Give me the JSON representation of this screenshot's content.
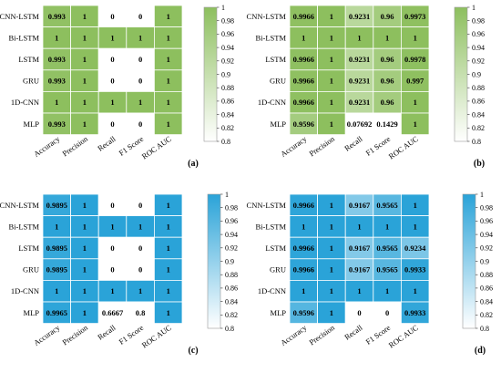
{
  "chart_data": [
    {
      "type": "heatmap",
      "panel_label": "(a)",
      "rows": [
        "CNN-LSTM",
        "Bi-LSTM",
        "LSTM",
        "GRU",
        "1D-CNN",
        "MLP"
      ],
      "columns": [
        "Accuracy",
        "Precision",
        "Recall",
        "F1 Score",
        "ROC AUC"
      ],
      "values": [
        [
          0.993,
          1,
          0,
          0,
          1
        ],
        [
          1,
          1,
          1,
          1,
          1
        ],
        [
          0.993,
          1,
          0,
          0,
          1
        ],
        [
          0.993,
          1,
          0,
          0,
          1
        ],
        [
          1,
          1,
          1,
          1,
          1
        ],
        [
          0.993,
          1,
          0,
          0,
          1
        ]
      ],
      "labels": [
        [
          "0.993",
          "1",
          "0",
          "0",
          "1"
        ],
        [
          "1",
          "1",
          "1",
          "1",
          "1"
        ],
        [
          "0.993",
          "1",
          "0",
          "0",
          "1"
        ],
        [
          "0.993",
          "1",
          "0",
          "0",
          "1"
        ],
        [
          "1",
          "1",
          "1",
          "1",
          "1"
        ],
        [
          "0.993",
          "1",
          "0",
          "0",
          "1"
        ]
      ],
      "colorbar": {
        "min": 0.8,
        "max": 1,
        "ticks": [
          "1",
          "0.98",
          "0.96",
          "0.94",
          "0.92",
          "0.9",
          "0.88",
          "0.86",
          "0.84",
          "0.82",
          "0.8"
        ]
      },
      "colors": {
        "high": "#8dbf5e",
        "low": "#ffffff"
      }
    },
    {
      "type": "heatmap",
      "panel_label": "(b)",
      "rows": [
        "CNN-LSTM",
        "Bi-LSTM",
        "LSTM",
        "GRU",
        "1D-CNN",
        "MLP"
      ],
      "columns": [
        "Accuracy",
        "Precision",
        "Recall",
        "F1 Score",
        "ROC AUC"
      ],
      "values": [
        [
          0.9966,
          1,
          0.9231,
          0.96,
          0.9973
        ],
        [
          1,
          1,
          1,
          1,
          1
        ],
        [
          0.9966,
          1,
          0.9231,
          0.96,
          0.9978
        ],
        [
          0.9966,
          1,
          0.9231,
          0.96,
          0.997
        ],
        [
          0.9966,
          1,
          0.9231,
          0.96,
          1
        ],
        [
          0.9596,
          1,
          0.07692,
          0.1429,
          1
        ]
      ],
      "labels": [
        [
          "0.9966",
          "1",
          "0.9231",
          "0.96",
          "0.9973"
        ],
        [
          "1",
          "1",
          "1",
          "1",
          "1"
        ],
        [
          "0.9966",
          "1",
          "0.9231",
          "0.96",
          "0.9978"
        ],
        [
          "0.9966",
          "1",
          "0.9231",
          "0.96",
          "0.997"
        ],
        [
          "0.9966",
          "1",
          "0.9231",
          "0.96",
          "1"
        ],
        [
          "0.9596",
          "1",
          "0.07692",
          "0.1429",
          "1"
        ]
      ],
      "colorbar": {
        "min": 0.8,
        "max": 1,
        "ticks": [
          "1",
          "0.98",
          "0.96",
          "0.94",
          "0.92",
          "0.9",
          "0.88",
          "0.86",
          "0.84",
          "0.82",
          "0.8"
        ]
      },
      "colors": {
        "high": "#8dbf5e",
        "low": "#ffffff"
      }
    },
    {
      "type": "heatmap",
      "panel_label": "(c)",
      "rows": [
        "CNN-LSTM",
        "Bi-LSTM",
        "LSTM",
        "GRU",
        "1D-CNN",
        "MLP"
      ],
      "columns": [
        "Accuracy",
        "Precision",
        "Recall",
        "F1 Score",
        "ROC AUC"
      ],
      "values": [
        [
          0.9895,
          1,
          0,
          0,
          1
        ],
        [
          1,
          1,
          1,
          1,
          1
        ],
        [
          0.9895,
          1,
          0,
          0,
          1
        ],
        [
          0.9895,
          1,
          0,
          0,
          1
        ],
        [
          1,
          1,
          1,
          1,
          1
        ],
        [
          0.9965,
          1,
          0.6667,
          0.8,
          1
        ]
      ],
      "labels": [
        [
          "0.9895",
          "1",
          "0",
          "0",
          "1"
        ],
        [
          "1",
          "1",
          "1",
          "1",
          "1"
        ],
        [
          "0.9895",
          "1",
          "0",
          "0",
          "1"
        ],
        [
          "0.9895",
          "1",
          "0",
          "0",
          "1"
        ],
        [
          "1",
          "1",
          "1",
          "1",
          "1"
        ],
        [
          "0.9965",
          "1",
          "0.6667",
          "0.8",
          "1"
        ]
      ],
      "colorbar": {
        "min": 0.8,
        "max": 1,
        "ticks": [
          "1",
          "0.98",
          "0.96",
          "0.94",
          "0.92",
          "0.9",
          "0.88",
          "0.86",
          "0.84",
          "0.82",
          "0.8"
        ]
      },
      "colors": {
        "high": "#2aa3d8",
        "low": "#ffffff"
      }
    },
    {
      "type": "heatmap",
      "panel_label": "(d)",
      "rows": [
        "CNN-LSTM",
        "Bi-LSTM",
        "LSTM",
        "GRU",
        "1D-CNN",
        "MLP"
      ],
      "columns": [
        "Accuracy",
        "Precision",
        "Recall",
        "F1 Score",
        "ROC AUC"
      ],
      "values": [
        [
          0.9966,
          1,
          0.9167,
          0.9565,
          1
        ],
        [
          1,
          1,
          1,
          1,
          1
        ],
        [
          0.9966,
          1,
          0.9167,
          0.9565,
          0.9234
        ],
        [
          0.9966,
          1,
          0.9167,
          0.9565,
          0.9933
        ],
        [
          1,
          1,
          1,
          1,
          1
        ],
        [
          0.9596,
          1,
          0,
          0,
          0.9933
        ]
      ],
      "labels": [
        [
          "0.9966",
          "1",
          "0.9167",
          "0.9565",
          "1"
        ],
        [
          "1",
          "1",
          "1",
          "1",
          "1"
        ],
        [
          "0.9966",
          "1",
          "0.9167",
          "0.9565",
          "0.9234"
        ],
        [
          "0.9966",
          "1",
          "0.9167",
          "0.9565",
          "0.9933"
        ],
        [
          "1",
          "1",
          "1",
          "1",
          "1"
        ],
        [
          "0.9596",
          "1",
          "0",
          "0",
          "0.9933"
        ]
      ],
      "colorbar": {
        "min": 0.8,
        "max": 1,
        "ticks": [
          "1",
          "0.98",
          "0.96",
          "0.94",
          "0.92",
          "0.9",
          "0.88",
          "0.86",
          "0.84",
          "0.82",
          "0.8"
        ]
      },
      "colors": {
        "high": "#2aa3d8",
        "low": "#ffffff"
      }
    }
  ]
}
